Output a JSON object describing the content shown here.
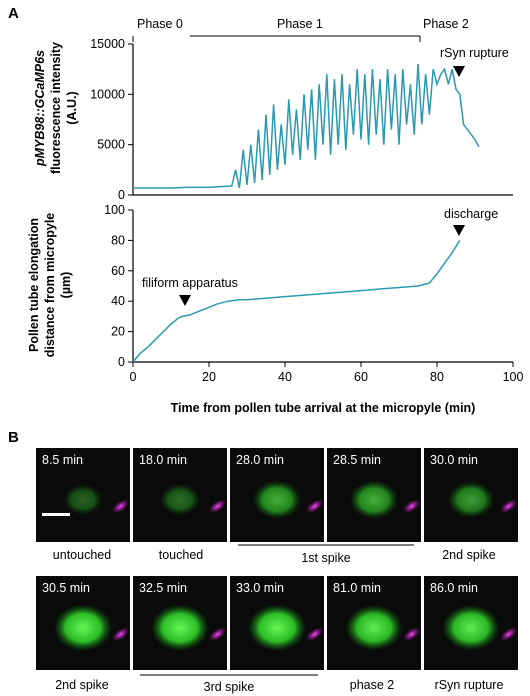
{
  "panel_a": {
    "letter": "A",
    "phases": [
      "Phase 0",
      "Phase 1",
      "Phase 2"
    ],
    "rupture_label": "rSyn rupture",
    "discharge_label": "discharge",
    "filiform_label": "filiform apparatus"
  },
  "panel_b": {
    "letter": "B",
    "tiles_row1": [
      {
        "time": "8.5 min",
        "level": 0.15
      },
      {
        "time": "18.0 min",
        "level": 0.2
      },
      {
        "time": "28.0 min",
        "level": 0.55
      },
      {
        "time": "28.5 min",
        "level": 0.55
      },
      {
        "time": "30.0 min",
        "level": 0.45
      }
    ],
    "tiles_row2": [
      {
        "time": "30.5 min",
        "level": 0.95
      },
      {
        "time": "32.5 min",
        "level": 0.95
      },
      {
        "time": "33.0 min",
        "level": 0.95
      },
      {
        "time": "81.0 min",
        "level": 0.9
      },
      {
        "time": "86.0 min",
        "level": 0.9
      }
    ],
    "captions_row1": [
      "untouched",
      "touched",
      "1st spike",
      "2nd spike"
    ],
    "captions_row2": [
      "2nd spike",
      "3rd spike",
      "phase 2",
      "rSyn rupture"
    ]
  },
  "chart_data": [
    {
      "type": "line",
      "ylabel": [
        "pMYB98::GCaMP6s",
        "fluorescence intensity",
        "(A.U.)"
      ],
      "xlim": [
        0,
        100
      ],
      "ylim": [
        0,
        15000
      ],
      "yticks": [
        "0",
        "5000",
        "10000",
        "15000"
      ],
      "color": "#2a9ab0",
      "series": [
        {
          "x": [
            0,
            5,
            10,
            14,
            20,
            22,
            26,
            27,
            28,
            29,
            30,
            31,
            32,
            33,
            34,
            35,
            36,
            37,
            38,
            39,
            40,
            41,
            42,
            43,
            44,
            45,
            46,
            47,
            48,
            49,
            50,
            51,
            52,
            53,
            54,
            55,
            56,
            57,
            58,
            59,
            60,
            61,
            62,
            63,
            64,
            65,
            66,
            67,
            68,
            69,
            70,
            71,
            72,
            73,
            74,
            75,
            76,
            77,
            78,
            79,
            80,
            81,
            82,
            83,
            84,
            85,
            86,
            87,
            88,
            89,
            90,
            91
          ],
          "y": [
            700,
            700,
            700,
            750,
            750,
            800,
            900,
            2500,
            700,
            4500,
            1000,
            5000,
            1200,
            6500,
            1500,
            8000,
            2000,
            9000,
            2500,
            7000,
            3000,
            9500,
            4000,
            8500,
            3500,
            10000,
            4500,
            10500,
            3500,
            11000,
            5000,
            12000,
            4000,
            11500,
            5000,
            12000,
            4500,
            11000,
            6000,
            12500,
            5500,
            12000,
            5000,
            12500,
            6000,
            11500,
            5000,
            12500,
            6500,
            12000,
            5000,
            12500,
            7000,
            11000,
            6000,
            13000,
            7000,
            12000,
            8000,
            12500,
            11000,
            12000,
            12500,
            11000,
            12500,
            10500,
            10000,
            7000,
            6500,
            6000,
            5500,
            4800
          ]
        }
      ]
    },
    {
      "type": "line",
      "xlabel": "Time from pollen tube arrival at the micropyle (min)",
      "ylabel": [
        "Pollen tube elongation",
        "distance from micropyle",
        "(µm)"
      ],
      "xlim": [
        0,
        100
      ],
      "ylim": [
        0,
        100
      ],
      "xticks": [
        "0",
        "20",
        "40",
        "60",
        "80",
        "100"
      ],
      "yticks": [
        "0",
        "20",
        "40",
        "60",
        "80",
        "100"
      ],
      "color": "#2a9ab0",
      "series": [
        {
          "x": [
            0,
            1,
            2,
            4,
            6,
            8,
            10,
            12,
            13,
            15,
            17,
            20,
            22,
            25,
            28,
            30,
            35,
            40,
            45,
            50,
            55,
            60,
            65,
            70,
            75,
            78,
            80,
            82,
            84,
            86
          ],
          "y": [
            0,
            3,
            6,
            10,
            15,
            20,
            25,
            29,
            30,
            31,
            33,
            36,
            38,
            40,
            41,
            41,
            42,
            43,
            44,
            45,
            46,
            47,
            48,
            49,
            50,
            52,
            58,
            65,
            72,
            80
          ]
        }
      ]
    }
  ]
}
